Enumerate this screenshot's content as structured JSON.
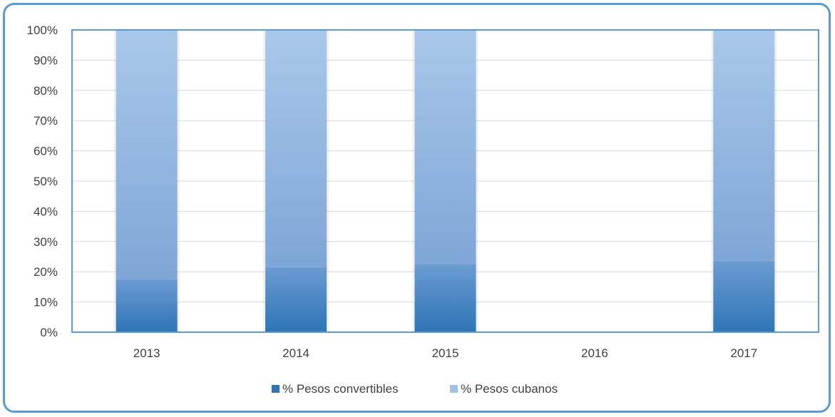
{
  "chart_data": {
    "type": "bar",
    "stacked": true,
    "percent_stacked": true,
    "categories": [
      "2013",
      "2014",
      "2015",
      "2016",
      "2017"
    ],
    "series": [
      {
        "name": "% Pesos convertibles",
        "values": [
          17.5,
          21.5,
          22.5,
          0,
          23.5
        ],
        "color": "#2e75b6"
      },
      {
        "name": "% Pesos cubanos",
        "values": [
          82.5,
          78.5,
          77.5,
          0,
          76.5
        ],
        "color": "#9dc3e6"
      }
    ],
    "ylim": [
      0,
      100
    ],
    "yticks": [
      "0%",
      "10%",
      "20%",
      "30%",
      "40%",
      "50%",
      "60%",
      "70%",
      "80%",
      "90%",
      "100%"
    ],
    "grid": true,
    "legend_position": "bottom",
    "plot_border_color": "#5b9bd5",
    "frame_color": "#5b9bd5"
  }
}
